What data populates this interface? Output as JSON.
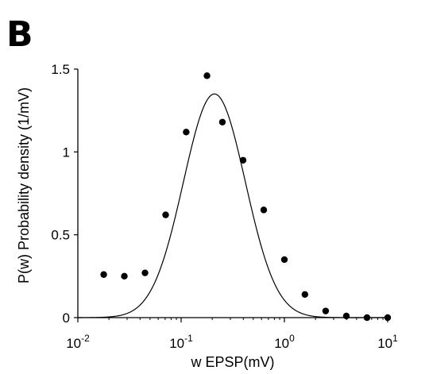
{
  "panel_label": "B",
  "chart_data": {
    "type": "scatter",
    "xlabel": "w EPSP(mV)",
    "ylabel": "P(w) Probability density (1/mV)",
    "xscale": "log",
    "xlim": [
      0.01,
      10
    ],
    "ylim": [
      0,
      1.5
    ],
    "x_ticks": [
      {
        "value": 0.01,
        "base": "10",
        "exp": "-2"
      },
      {
        "value": 0.1,
        "base": "10",
        "exp": "-1"
      },
      {
        "value": 1,
        "base": "10",
        "exp": "0"
      },
      {
        "value": 10,
        "base": "10",
        "exp": "1"
      }
    ],
    "y_ticks": [
      {
        "value": 0,
        "label": "0"
      },
      {
        "value": 0.5,
        "label": "0.5"
      },
      {
        "value": 1,
        "label": "1"
      },
      {
        "value": 1.5,
        "label": "1.5"
      }
    ],
    "grid": false,
    "series": [
      {
        "kind": "points",
        "x": [
          0.0178,
          0.0282,
          0.0447,
          0.0708,
          0.112,
          0.178,
          0.251,
          0.398,
          0.631,
          1.0,
          1.58,
          2.51,
          3.98,
          6.31,
          10.0
        ],
        "y": [
          0.26,
          0.25,
          0.27,
          0.62,
          1.12,
          1.46,
          1.18,
          0.95,
          0.65,
          0.35,
          0.14,
          0.04,
          0.01,
          0.0,
          0.0
        ]
      },
      {
        "kind": "fit-curve",
        "peak_x": 0.21,
        "peak_y": 1.35,
        "log_sigma": 0.3
      }
    ]
  }
}
